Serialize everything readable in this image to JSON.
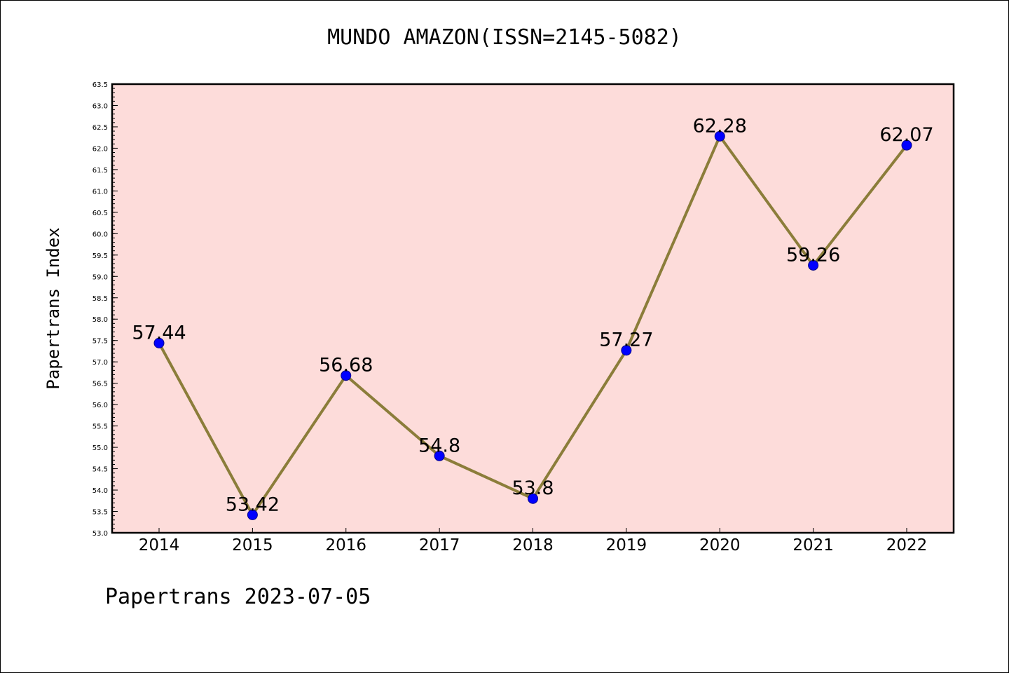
{
  "chart_data": {
    "type": "line",
    "title": "MUNDO AMAZON(ISSN=2145-5082)",
    "xlabel": "",
    "ylabel": "Papertrans Index",
    "categories": [
      "2014",
      "2015",
      "2016",
      "2017",
      "2018",
      "2019",
      "2020",
      "2021",
      "2022"
    ],
    "series": [
      {
        "values": [
          57.44,
          53.42,
          56.68,
          54.8,
          53.8,
          57.27,
          62.28,
          59.26,
          62.07
        ],
        "data_labels": [
          "57.44",
          "53.42",
          "56.68",
          "54.8",
          "53.8",
          "57.27",
          "62.28",
          "59.26",
          "62.07"
        ]
      }
    ],
    "ylim": [
      53.0,
      63.5
    ],
    "yticks": [
      "53.0",
      "53.5",
      "54.0",
      "54.5",
      "55.0",
      "55.5",
      "56.0",
      "56.5",
      "57.0",
      "57.5",
      "58.0",
      "58.5",
      "59.0",
      "59.5",
      "60.0",
      "60.5",
      "61.0",
      "61.5",
      "62.0",
      "62.5",
      "63.0",
      "63.5"
    ],
    "grid": false,
    "colors": {
      "plot_background": "#fddcda",
      "line": "#8b7d3a",
      "marker_fill": "#0000ff",
      "marker_edge": "#00008b"
    }
  },
  "footer": "Papertrans 2023-07-05"
}
